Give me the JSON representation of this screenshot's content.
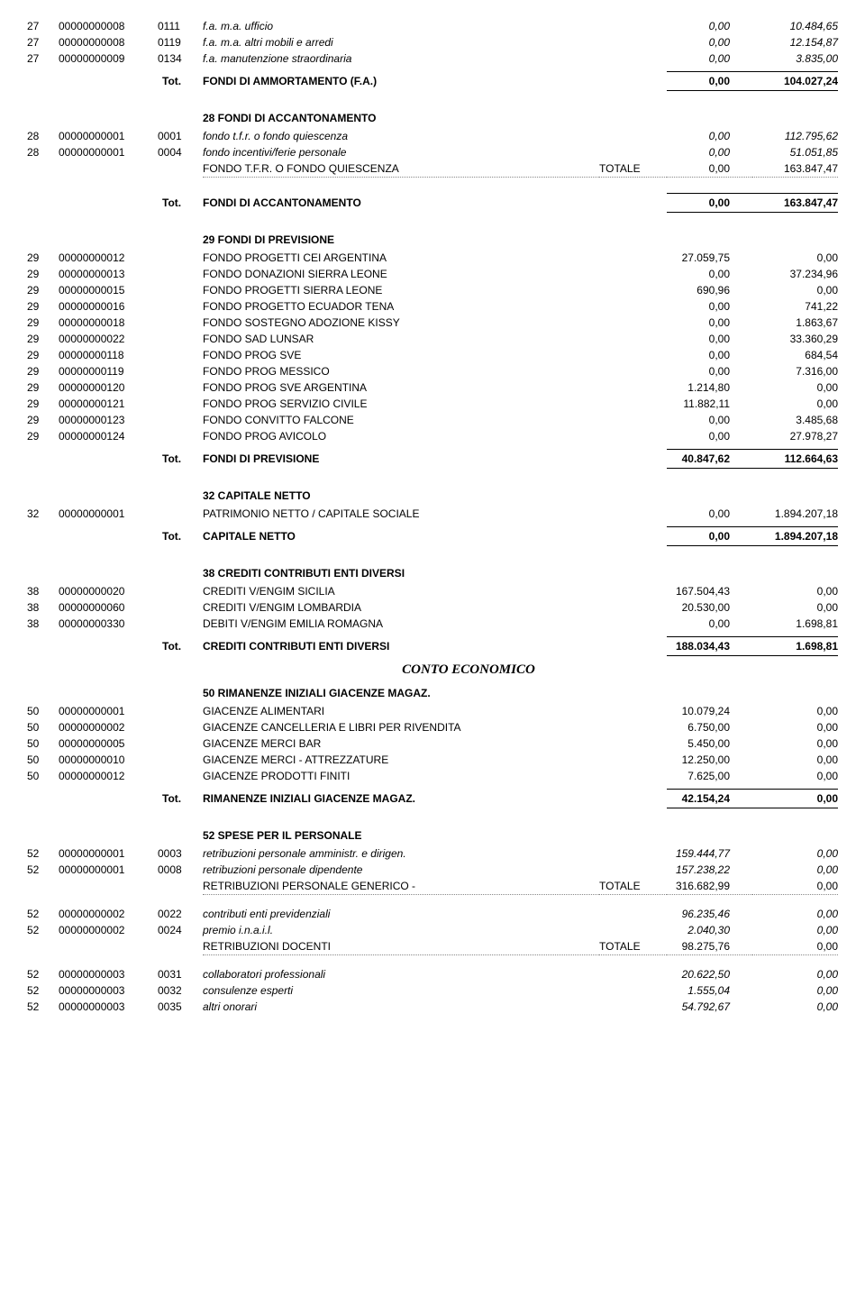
{
  "s27": {
    "rows": [
      {
        "a": "27",
        "b": "00000000008",
        "c": "0111",
        "d": "f.a. m.a. ufficio",
        "e": "0,00",
        "f": "10.484,65",
        "italic": true
      },
      {
        "a": "27",
        "b": "00000000008",
        "c": "0119",
        "d": "f.a. m.a. altri mobili e arredi",
        "e": "0,00",
        "f": "12.154,87",
        "italic": true
      },
      {
        "a": "27",
        "b": "00000000009",
        "c": "0134",
        "d": "f.a. manutenzione straordinaria",
        "e": "0,00",
        "f": "3.835,00",
        "italic": true
      }
    ],
    "tot": {
      "lbl": "Tot.",
      "name": "FONDI DI AMMORTAMENTO (F.A.)",
      "v1": "0,00",
      "v2": "104.027,24"
    }
  },
  "s28": {
    "title": "28 FONDI DI ACCANTONAMENTO",
    "rows": [
      {
        "a": "28",
        "b": "00000000001",
        "c": "0001",
        "d": "fondo t.f.r. o fondo quiescenza",
        "e": "0,00",
        "f": "112.795,62",
        "italic": true
      },
      {
        "a": "28",
        "b": "00000000001",
        "c": "0004",
        "d": "fondo incentivi/ferie personale",
        "e": "0,00",
        "f": "51.051,85",
        "italic": true
      }
    ],
    "dotted": {
      "lbl": "FONDO T.F.R. O FONDO QUIESCENZA",
      "t": "TOTALE",
      "v1": "0,00",
      "v2": "163.847,47"
    },
    "tot": {
      "lbl": "Tot.",
      "name": "FONDI DI ACCANTONAMENTO",
      "v1": "0,00",
      "v2": "163.847,47"
    }
  },
  "s29": {
    "title": "29 FONDI DI PREVISIONE",
    "rows": [
      {
        "a": "29",
        "b": "00000000012",
        "c": "",
        "d": "FONDO PROGETTI CEI ARGENTINA",
        "e": "27.059,75",
        "f": "0,00"
      },
      {
        "a": "29",
        "b": "00000000013",
        "c": "",
        "d": "FONDO DONAZIONI SIERRA LEONE",
        "e": "0,00",
        "f": "37.234,96"
      },
      {
        "a": "29",
        "b": "00000000015",
        "c": "",
        "d": "FONDO PROGETTI SIERRA LEONE",
        "e": "690,96",
        "f": "0,00"
      },
      {
        "a": "29",
        "b": "00000000016",
        "c": "",
        "d": "FONDO PROGETTO ECUADOR TENA",
        "e": "0,00",
        "f": "741,22"
      },
      {
        "a": "29",
        "b": "00000000018",
        "c": "",
        "d": "FONDO SOSTEGNO ADOZIONE KISSY",
        "e": "0,00",
        "f": "1.863,67"
      },
      {
        "a": "29",
        "b": "00000000022",
        "c": "",
        "d": "FONDO SAD LUNSAR",
        "e": "0,00",
        "f": "33.360,29"
      },
      {
        "a": "29",
        "b": "00000000118",
        "c": "",
        "d": "FONDO PROG SVE",
        "e": "0,00",
        "f": "684,54"
      },
      {
        "a": "29",
        "b": "00000000119",
        "c": "",
        "d": "FONDO PROG  MESSICO",
        "e": "0,00",
        "f": "7.316,00"
      },
      {
        "a": "29",
        "b": "00000000120",
        "c": "",
        "d": "FONDO PROG SVE ARGENTINA",
        "e": "1.214,80",
        "f": "0,00"
      },
      {
        "a": "29",
        "b": "00000000121",
        "c": "",
        "d": "FONDO PROG SERVIZIO CIVILE",
        "e": "11.882,11",
        "f": "0,00"
      },
      {
        "a": "29",
        "b": "00000000123",
        "c": "",
        "d": "FONDO CONVITTO FALCONE",
        "e": "0,00",
        "f": "3.485,68"
      },
      {
        "a": "29",
        "b": "00000000124",
        "c": "",
        "d": "FONDO PROG AVICOLO",
        "e": "0,00",
        "f": "27.978,27"
      }
    ],
    "tot": {
      "lbl": "Tot.",
      "name": "FONDI DI PREVISIONE",
      "v1": "40.847,62",
      "v2": "112.664,63"
    }
  },
  "s32": {
    "title": "32 CAPITALE NETTO",
    "rows": [
      {
        "a": "32",
        "b": "00000000001",
        "c": "",
        "d": "PATRIMONIO NETTO / CAPITALE SOCIALE",
        "e": "0,00",
        "f": "1.894.207,18"
      }
    ],
    "tot": {
      "lbl": "Tot.",
      "name": "CAPITALE NETTO",
      "v1": "0,00",
      "v2": "1.894.207,18"
    }
  },
  "s38": {
    "title": "38 CREDITI CONTRIBUTI ENTI DIVERSI",
    "rows": [
      {
        "a": "38",
        "b": "00000000020",
        "c": "",
        "d": "CREDITI V/ENGIM SICILIA",
        "e": "167.504,43",
        "f": "0,00"
      },
      {
        "a": "38",
        "b": "00000000060",
        "c": "",
        "d": "CREDITI V/ENGIM LOMBARDIA",
        "e": "20.530,00",
        "f": "0,00"
      },
      {
        "a": "38",
        "b": "00000000330",
        "c": "",
        "d": "DEBITI V/ENGIM EMILIA ROMAGNA",
        "e": "0,00",
        "f": "1.698,81"
      }
    ],
    "tot": {
      "lbl": "Tot.",
      "name": "CREDITI CONTRIBUTI ENTI DIVERSI",
      "v1": "188.034,43",
      "v2": "1.698,81"
    }
  },
  "conto_economico": "CONTO ECONOMICO",
  "s50": {
    "title": "50 RIMANENZE INIZIALI GIACENZE MAGAZ.",
    "rows": [
      {
        "a": "50",
        "b": "00000000001",
        "c": "",
        "d": "GIACENZE ALIMENTARI",
        "e": "10.079,24",
        "f": "0,00"
      },
      {
        "a": "50",
        "b": "00000000002",
        "c": "",
        "d": "GIACENZE CANCELLERIA E LIBRI PER RIVENDITA",
        "e": "6.750,00",
        "f": "0,00"
      },
      {
        "a": "50",
        "b": "00000000005",
        "c": "",
        "d": "GIACENZE MERCI BAR",
        "e": "5.450,00",
        "f": "0,00"
      },
      {
        "a": "50",
        "b": "00000000010",
        "c": "",
        "d": "GIACENZE MERCI - ATTREZZATURE",
        "e": "12.250,00",
        "f": "0,00"
      },
      {
        "a": "50",
        "b": "00000000012",
        "c": "",
        "d": "GIACENZE PRODOTTI FINITI",
        "e": "7.625,00",
        "f": "0,00"
      }
    ],
    "tot": {
      "lbl": "Tot.",
      "name": "RIMANENZE INIZIALI GIACENZE MAGAZ.",
      "v1": "42.154,24",
      "v2": "0,00"
    }
  },
  "s52": {
    "title": "52 SPESE PER IL PERSONALE",
    "g1": {
      "rows": [
        {
          "a": "52",
          "b": "00000000001",
          "c": "0003",
          "d": "retribuzioni personale amministr. e dirigen.",
          "e": "159.444,77",
          "f": "0,00",
          "italic": true
        },
        {
          "a": "52",
          "b": "00000000001",
          "c": "0008",
          "d": "retribuzioni personale dipendente",
          "e": "157.238,22",
          "f": "0,00",
          "italic": true
        }
      ],
      "dotted": {
        "lbl": "RETRIBUZIONI PERSONALE GENERICO -",
        "t": "TOTALE",
        "v1": "316.682,99",
        "v2": "0,00"
      }
    },
    "g2": {
      "rows": [
        {
          "a": "52",
          "b": "00000000002",
          "c": "0022",
          "d": "contributi enti previdenziali",
          "e": "96.235,46",
          "f": "0,00",
          "italic": true
        },
        {
          "a": "52",
          "b": "00000000002",
          "c": "0024",
          "d": "premio i.n.a.i.l.",
          "e": "2.040,30",
          "f": "0,00",
          "italic": true
        }
      ],
      "dotted": {
        "lbl": "RETRIBUZIONI DOCENTI",
        "t": "TOTALE",
        "v1": "98.275,76",
        "v2": "0,00"
      }
    },
    "g3": {
      "rows": [
        {
          "a": "52",
          "b": "00000000003",
          "c": "0031",
          "d": "collaboratori professionali",
          "e": "20.622,50",
          "f": "0,00",
          "italic": true
        },
        {
          "a": "52",
          "b": "00000000003",
          "c": "0032",
          "d": "consulenze esperti",
          "e": "1.555,04",
          "f": "0,00",
          "italic": true
        },
        {
          "a": "52",
          "b": "00000000003",
          "c": "0035",
          "d": "altri onorari",
          "e": "54.792,67",
          "f": "0,00",
          "italic": true
        }
      ]
    }
  }
}
